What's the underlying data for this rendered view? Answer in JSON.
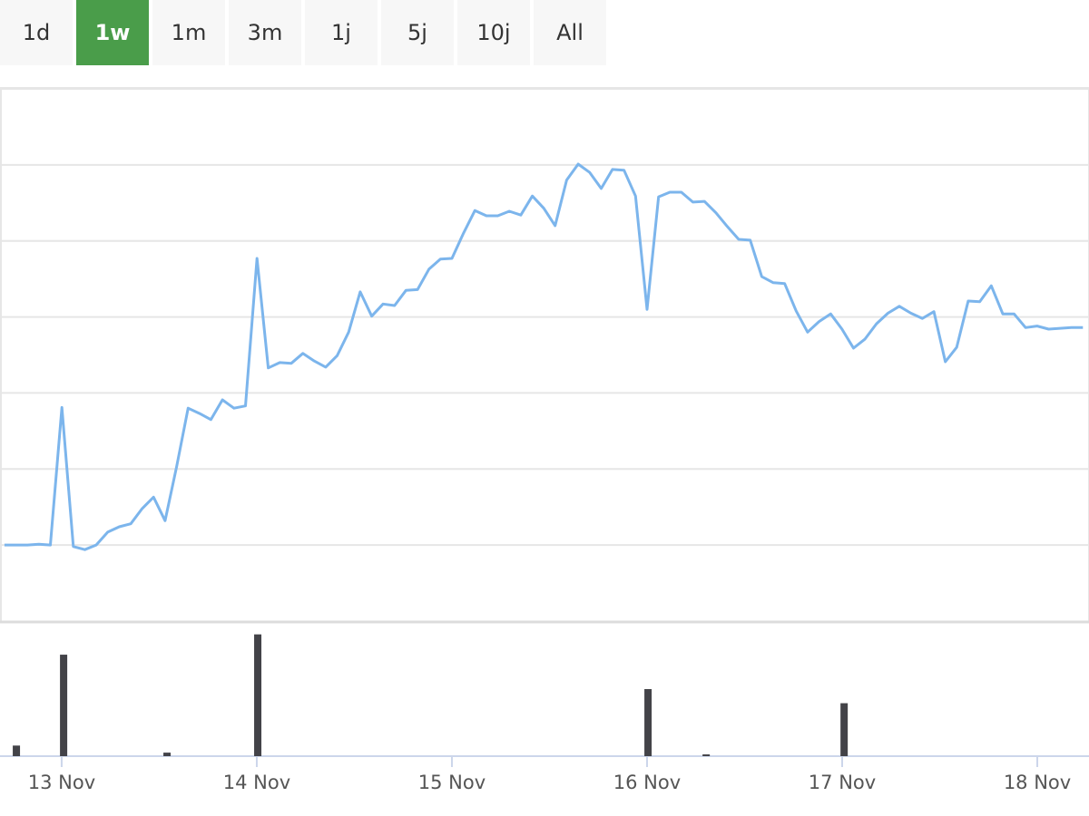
{
  "range_selector": {
    "buttons": [
      "1d",
      "1w",
      "1m",
      "3m",
      "1j",
      "5j",
      "10j",
      "All"
    ],
    "selected": 1
  },
  "chart_data": [
    {
      "type": "line",
      "color": "#7cb5ec",
      "x": [
        12.707,
        12.766,
        12.825,
        12.883,
        12.942,
        13.001,
        13.06,
        13.119,
        13.177,
        13.236,
        13.295,
        13.354,
        13.413,
        13.471,
        13.53,
        13.589,
        13.648,
        13.707,
        13.765,
        13.824,
        13.883,
        13.942,
        14.001,
        14.059,
        14.118,
        14.177,
        14.236,
        14.295,
        14.353,
        14.412,
        14.471,
        14.53,
        14.589,
        14.647,
        14.706,
        14.765,
        14.824,
        14.883,
        14.941,
        15.0,
        15.059,
        15.118,
        15.177,
        15.235,
        15.294,
        15.353,
        15.412,
        15.471,
        15.529,
        15.588,
        15.647,
        15.706,
        15.765,
        15.823,
        15.882,
        15.941,
        16.0,
        16.059,
        16.117,
        16.176,
        16.235,
        16.294,
        16.353,
        16.411,
        16.47,
        16.529,
        16.588,
        16.647,
        16.705,
        16.764,
        16.823,
        16.882,
        16.941,
        16.999,
        17.058,
        17.117,
        17.176,
        17.235,
        17.293,
        17.352,
        17.411,
        17.47,
        17.529,
        17.587,
        17.646,
        17.705,
        17.764,
        17.823,
        17.881,
        17.94,
        17.999,
        18.058,
        18.117,
        18.175,
        18.234
      ],
      "values": [
        1.0,
        1.0,
        1.0,
        1.01,
        1.0,
        2.81,
        0.98,
        0.94,
        1.0,
        1.17,
        1.24,
        1.28,
        1.48,
        1.63,
        1.32,
        2.03,
        2.8,
        2.73,
        2.65,
        2.91,
        2.8,
        2.83,
        4.77,
        3.33,
        3.4,
        3.39,
        3.52,
        3.42,
        3.34,
        3.49,
        3.8,
        4.33,
        4.01,
        4.17,
        4.15,
        4.35,
        4.36,
        4.63,
        4.76,
        4.77,
        5.1,
        5.4,
        5.33,
        5.33,
        5.39,
        5.34,
        5.59,
        5.43,
        5.2,
        5.8,
        6.01,
        5.9,
        5.69,
        5.94,
        5.93,
        5.59,
        4.1,
        5.58,
        5.64,
        5.64,
        5.51,
        5.52,
        5.37,
        5.19,
        5.02,
        5.01,
        4.53,
        4.45,
        4.44,
        4.08,
        3.8,
        3.94,
        4.04,
        3.84,
        3.59,
        3.71,
        3.91,
        4.05,
        4.14,
        4.05,
        3.98,
        4.07,
        3.41,
        3.6,
        4.21,
        4.2,
        4.41,
        4.04,
        4.04,
        3.86,
        3.88,
        3.84,
        3.85,
        3.86,
        3.86
      ],
      "xlim": [
        12.684,
        18.265
      ],
      "ylim": [
        0,
        7
      ],
      "yticks": [
        1,
        2,
        3,
        4,
        5,
        6,
        7
      ],
      "grid": true
    },
    {
      "type": "bar",
      "color": "#434348",
      "x": [
        12.768,
        13.01,
        13.54,
        14.005,
        16.005,
        16.303,
        17.01
      ],
      "values": [
        12,
        115,
        4,
        138,
        76,
        2,
        60
      ],
      "xlim": [
        12.684,
        18.265
      ],
      "ylim": [
        0,
        150
      ],
      "xticks": [
        {
          "value": 13,
          "label": "13 Nov"
        },
        {
          "value": 14,
          "label": "14 Nov"
        },
        {
          "value": 15,
          "label": "15 Nov"
        },
        {
          "value": 16,
          "label": "16 Nov"
        },
        {
          "value": 17,
          "label": "17 Nov"
        },
        {
          "value": 18,
          "label": "18 Nov"
        }
      ]
    }
  ]
}
